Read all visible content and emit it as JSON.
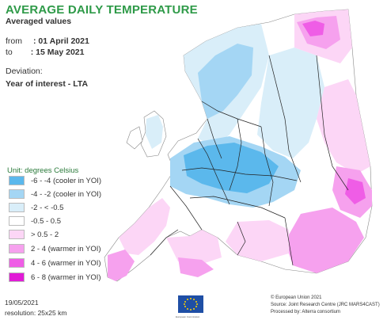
{
  "header": {
    "title": "AVERAGE DAILY TEMPERATURE",
    "subtitle": "Averaged values",
    "from_prefix": "from",
    "from_value": ": 01 April 2021",
    "to_prefix": "to",
    "to_value": ": 15 May 2021",
    "deviation_label": "Deviation:",
    "deviation_measure": "Year of interest - LTA"
  },
  "legend": {
    "unit": "Unit: degrees Celsius",
    "classes": [
      {
        "label": "-6 - -4 (cooler in YOI)",
        "color": "#5bb8ec"
      },
      {
        "label": "-4 - -2 (cooler in YOI)",
        "color": "#a4d6f4"
      },
      {
        "label": "-2 - < -0.5",
        "color": "#d9eef9"
      },
      {
        "label": "-0.5 - 0.5",
        "color": "#ffffff"
      },
      {
        "label": "> 0.5 - 2",
        "color": "#fcd6f6"
      },
      {
        "label": "2 - 4 (warmer in YOI)",
        "color": "#f6a1ee"
      },
      {
        "label": "4 - 6 (warmer in YOI)",
        "color": "#ef5de6"
      },
      {
        "label": "6 - 8 (warmer in YOI)",
        "color": "#e11bd6"
      }
    ]
  },
  "footer": {
    "date": "19/05/2021",
    "resolution": "resolution: 25x25 km",
    "eu_caption": "European Commission",
    "credit_1": "© European Union 2021",
    "credit_2": "Source: Joint Research Centre (JRC MARS4CAST)",
    "credit_3": "Processed by: Alterra consortium"
  },
  "colors": {
    "sea": "#ffffff",
    "border": "#222222",
    "title": "#2e9a48",
    "eu_flag": "#1f4fa5",
    "eu_stars": "#ffd200"
  }
}
